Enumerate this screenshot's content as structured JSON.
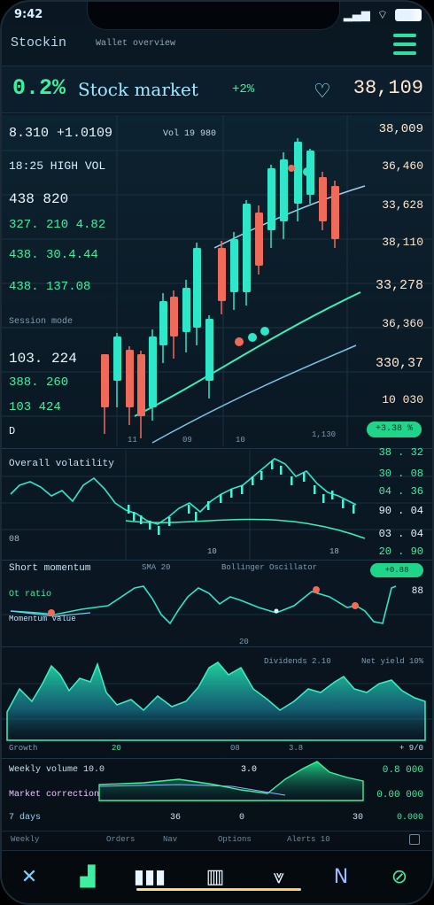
{
  "status": {
    "time": "9:42"
  },
  "header": {
    "app_title": "Stockin",
    "subtitle": "Wallet overview"
  },
  "ticker": {
    "percent": "0.2%",
    "name": "Stock market",
    "change": "+2%",
    "price": "38,109"
  },
  "main_chart": {
    "top_line": "8.310 +1.0109",
    "top_caption": "Vol 19 980",
    "left_labels": [
      "18:25 HIGH VOL",
      "438 820",
      "327. 210 4.82",
      "438. 30.4.44",
      "438. 137.08",
      "Session mode",
      "103. 224",
      "388. 260",
      "103 424"
    ],
    "price_axis": [
      "38,009",
      "36,460",
      "33,628",
      "38,110",
      "33,278",
      "36,360",
      "330,37",
      "10 030"
    ],
    "time_labels": [
      "11",
      "09",
      "10",
      "1,130"
    ],
    "volume_badge": "+3.38 %"
  },
  "panel2": {
    "title": "Overall volatility",
    "right_values": [
      "38 . 32",
      "30 . 08",
      "04 . 36",
      "90 . 04",
      "03 . 04",
      "20 . 90"
    ],
    "axis_labels": [
      "D",
      "08",
      "10",
      "18"
    ]
  },
  "panel3": {
    "title": "Short momentum",
    "mid_labels": [
      "SMA 20",
      "Bollinger Oscillator"
    ],
    "left_labels": [
      "Ot ratio",
      "Momentum value"
    ],
    "right_value": "88",
    "badge": "+0.88"
  },
  "panel4": {
    "top_label": "20",
    "right_labels": [
      "Dividends 2.10",
      "Net yield 10%"
    ],
    "bottom_labels": [
      "Growth",
      "20",
      "08",
      "3.8",
      "+ 9/0"
    ]
  },
  "panel5": {
    "left_labels": [
      "Weekly volume 10.0",
      "Market correction"
    ],
    "mid_value": "3.0",
    "right_values": [
      "0.8 000",
      "0.00 000"
    ],
    "bottom_labels": [
      "7 days",
      "36",
      "0",
      "30",
      "0.000"
    ]
  },
  "footer_row": [
    "Weekly",
    "Orders",
    "Nav",
    "Options",
    "Alerts 10"
  ],
  "nav": {
    "items": [
      "close",
      "portfolio",
      "chart",
      "stats",
      "news",
      "notes",
      "search"
    ]
  },
  "colors": {
    "accent": "#3cf0a0",
    "up": "#2ee6c8",
    "down": "#f06a5a",
    "cyan": "#9fe8ff"
  }
}
